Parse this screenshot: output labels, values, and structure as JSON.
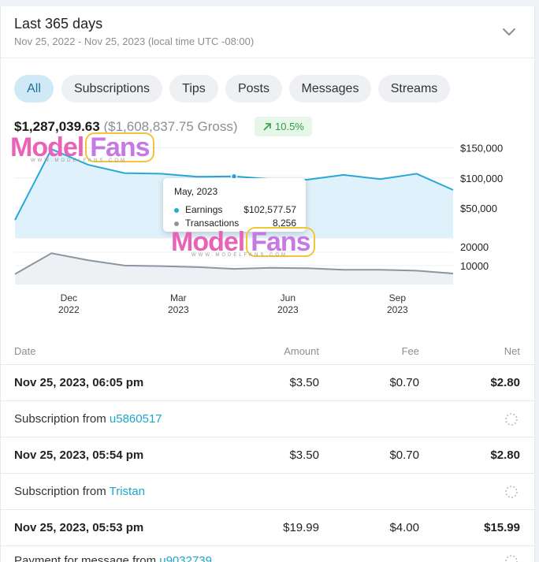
{
  "header": {
    "title": "Last 365 days",
    "subtitle": "Nov 25, 2022 - Nov 25, 2023 (local time UTC -08:00)"
  },
  "tabs": [
    {
      "label": "All",
      "active": true
    },
    {
      "label": "Subscriptions",
      "active": false
    },
    {
      "label": "Tips",
      "active": false
    },
    {
      "label": "Posts",
      "active": false
    },
    {
      "label": "Messages",
      "active": false
    },
    {
      "label": "Streams",
      "active": false
    }
  ],
  "summary": {
    "net": "$1,287,039.63",
    "gross": "($1,608,837.75 Gross)",
    "change": "10.5%"
  },
  "colors": {
    "earnings_line": "#29a8d8",
    "earnings_fill": "#dff1fa",
    "transactions_line": "#8b96a3",
    "transactions_fill": "#eef1f4",
    "accent_link": "#1fa5c9",
    "positive": "#2f9e44"
  },
  "chart_data": [
    {
      "type": "area",
      "name": "earnings",
      "x": [
        "Nov 2022",
        "Dec 2022",
        "Jan 2023",
        "Feb 2023",
        "Mar 2023",
        "Apr 2023",
        "May 2023",
        "Jun 2023",
        "Jul 2023",
        "Aug 2023",
        "Sep 2023",
        "Oct 2023",
        "Nov 2023"
      ],
      "series": [
        {
          "name": "Earnings",
          "values": [
            30000,
            148000,
            122000,
            108000,
            107000,
            102000,
            102577.57,
            98000,
            97000,
            105000,
            98000,
            107000,
            80000
          ]
        }
      ],
      "y_ticks": [
        "$150,000",
        "$100,000",
        "$50,000"
      ],
      "ylim": [
        0,
        160000
      ]
    },
    {
      "type": "area",
      "name": "transactions",
      "x": [
        "Nov 2022",
        "Dec 2022",
        "Jan 2023",
        "Feb 2023",
        "Mar 2023",
        "Apr 2023",
        "May 2023",
        "Jun 2023",
        "Jul 2023",
        "Aug 2023",
        "Sep 2023",
        "Oct 2023",
        "Nov 2023"
      ],
      "series": [
        {
          "name": "Transactions",
          "values": [
            5500,
            16500,
            12800,
            10000,
            9700,
            9200,
            8256,
            8800,
            8600,
            7800,
            7800,
            7300,
            5800
          ]
        }
      ],
      "y_ticks": [
        "20000",
        "10000"
      ],
      "ylim": [
        0,
        22000
      ]
    }
  ],
  "x_axis": [
    {
      "month": "Dec",
      "year": "2022"
    },
    {
      "month": "Mar",
      "year": "2023"
    },
    {
      "month": "Jun",
      "year": "2023"
    },
    {
      "month": "Sep",
      "year": "2023"
    }
  ],
  "tooltip": {
    "title": "May, 2023",
    "earnings_label": "Earnings",
    "earnings_value": "$102,577.57",
    "transactions_label": "Transactions",
    "transactions_value": "8,256"
  },
  "watermark": {
    "model": "Model",
    "fans": "Fans",
    "url": "WWW.MODELFANS.COM"
  },
  "table": {
    "headers": {
      "date": "Date",
      "amount": "Amount",
      "fee": "Fee",
      "net": "Net"
    },
    "rows": [
      {
        "date": "Nov 25, 2023, 06:05 pm",
        "amount": "$3.50",
        "fee": "$0.70",
        "net": "$2.80",
        "description": "Subscription from",
        "user": "u5860517"
      },
      {
        "date": "Nov 25, 2023, 05:54 pm",
        "amount": "$3.50",
        "fee": "$0.70",
        "net": "$2.80",
        "description": "Subscription from",
        "user": "Tristan"
      },
      {
        "date": "Nov 25, 2023, 05:53 pm",
        "amount": "$19.99",
        "fee": "$4.00",
        "net": "$15.99",
        "description": "Payment for message from",
        "user": "u9032739"
      }
    ]
  }
}
